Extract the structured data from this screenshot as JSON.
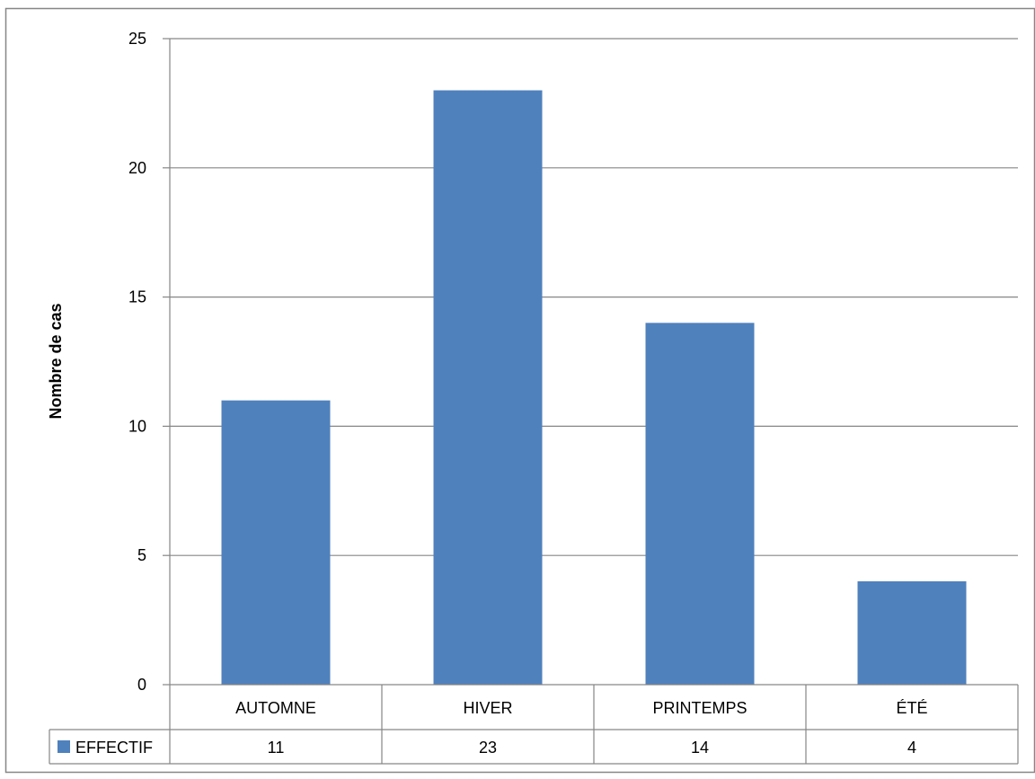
{
  "chart_data": {
    "type": "bar",
    "title": "",
    "xlabel": "",
    "ylabel": "Nombre de cas",
    "categories": [
      "AUTOMNE",
      "HIVER",
      "PRINTEMPS",
      "ÉTÉ"
    ],
    "series": [
      {
        "name": "EFFECTIF",
        "values": [
          11,
          23,
          14,
          4
        ],
        "color": "#4F81BD"
      }
    ],
    "ylim": [
      0,
      25
    ],
    "yticks": [
      "0",
      "5",
      "10",
      "15",
      "20",
      "25"
    ],
    "grid": true,
    "legend": "data-table",
    "data_table": true
  }
}
